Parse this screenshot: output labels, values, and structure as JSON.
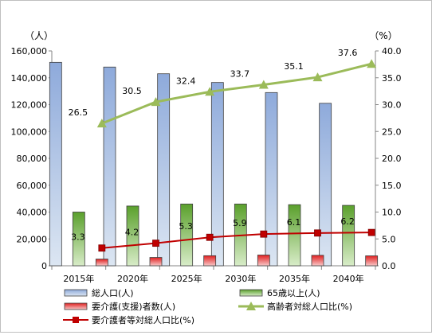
{
  "chart_data": {
    "type": "bar",
    "categories": [
      "2015年",
      "2020年",
      "2025年",
      "2030年",
      "2035年",
      "2040年"
    ],
    "y_left": {
      "unit_label": "（人）",
      "ylim": [
        0,
        160000
      ],
      "ticks": [
        "0",
        "20,000",
        "40,000",
        "60,000",
        "80,000",
        "100,000",
        "120,000",
        "140,000",
        "160,000"
      ]
    },
    "y_right": {
      "unit_label": "（%）",
      "ylim": [
        0,
        40
      ],
      "ticks": [
        "0.0",
        "5.0",
        "10.0",
        "15.0",
        "20.0",
        "25.0",
        "30.0",
        "35.0",
        "40.0"
      ]
    },
    "grid": false,
    "legend_position": "bottom",
    "series": [
      {
        "name": "総人口(人)",
        "type": "bar",
        "axis": "left",
        "color": "#4f81bd",
        "values": [
          151500,
          148000,
          143000,
          136500,
          129000,
          121000
        ]
      },
      {
        "name": "65歳以上(人)",
        "type": "bar",
        "axis": "left",
        "color": "#70ad47",
        "values": [
          40000,
          44500,
          46000,
          46000,
          45500,
          45000
        ]
      },
      {
        "name": "要介護(支援)者数(人)",
        "type": "bar",
        "axis": "left",
        "color": "#e03030",
        "values": [
          5000,
          6200,
          7500,
          8000,
          7800,
          7400
        ]
      },
      {
        "name": "高齢者対総人口比(%)",
        "type": "line",
        "axis": "right",
        "color": "#9bbb59",
        "marker": "triangle",
        "values": [
          26.5,
          30.5,
          32.4,
          33.7,
          35.1,
          37.6
        ],
        "labels": [
          "26.5",
          "30.5",
          "32.4",
          "33.7",
          "35.1",
          "37.6"
        ]
      },
      {
        "name": "要介護者等対総人口比(%)",
        "type": "line",
        "axis": "right",
        "color": "#c00000",
        "marker": "square",
        "values": [
          3.3,
          4.2,
          5.3,
          5.9,
          6.1,
          6.2
        ],
        "labels": [
          "3.3",
          "4.2",
          "5.3",
          "5.9",
          "6.1",
          "6.2"
        ]
      }
    ]
  }
}
